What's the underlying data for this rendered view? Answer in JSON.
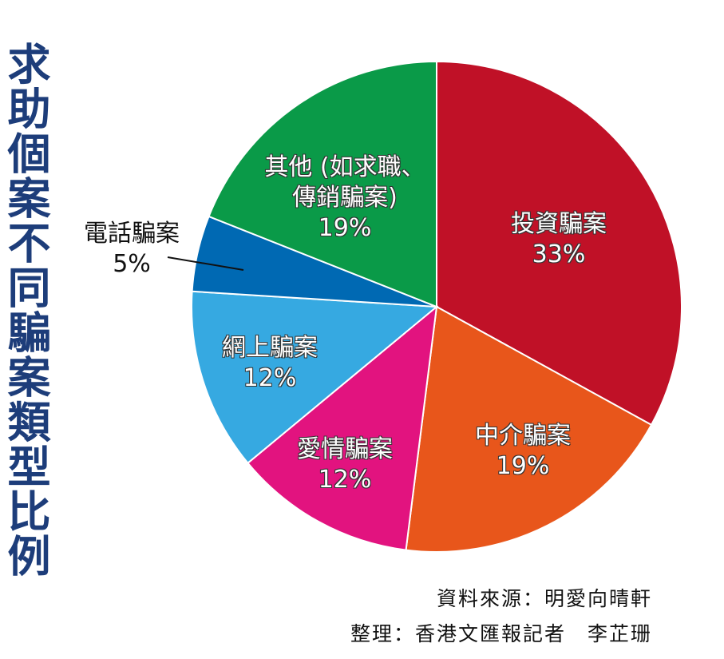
{
  "chart_data": {
    "type": "pie",
    "title": "求助個案不同騙案類型比例",
    "categories": [
      "投資騙案",
      "中介騙案",
      "愛情騙案",
      "網上騙案",
      "電話騙案",
      "其他 (如求職、傳銷騙案)"
    ],
    "values": [
      33,
      19,
      12,
      12,
      5,
      19
    ],
    "value_labels": [
      "33%",
      "19%",
      "12%",
      "12%",
      "5%",
      "19%"
    ],
    "colors": [
      "#c01127",
      "#e8561b",
      "#e2137f",
      "#36a9e1",
      "#0069b3",
      "#0a9a48"
    ],
    "source": "資料來源：明愛向晴軒",
    "credit": "整理：香港文匯報記者　李芷珊"
  }
}
